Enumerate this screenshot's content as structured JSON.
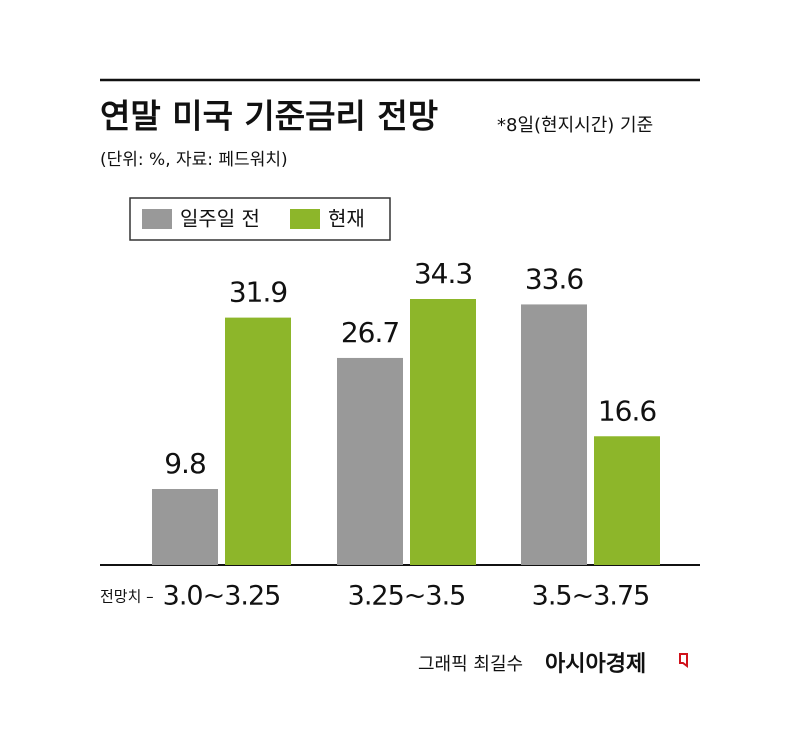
{
  "chart_data": {
    "type": "bar",
    "title": "연말 미국 기준금리 전망",
    "subtitle": "*8일(현지시간) 기준",
    "note": "(단위:  %, 자료: 페드워치)",
    "x_label": "전망치 –",
    "categories": [
      "3.0~3.25",
      "3.25~3.5",
      "3.5~3.75"
    ],
    "series": [
      {
        "name": "일주일 전",
        "color": "#999999",
        "values": [
          9.8,
          26.7,
          33.6
        ]
      },
      {
        "name": "현재",
        "color": "#8db62a",
        "values": [
          31.9,
          34.3,
          16.6
        ]
      }
    ],
    "credit": "그래픽 최길수",
    "brand": "아시아경제"
  }
}
